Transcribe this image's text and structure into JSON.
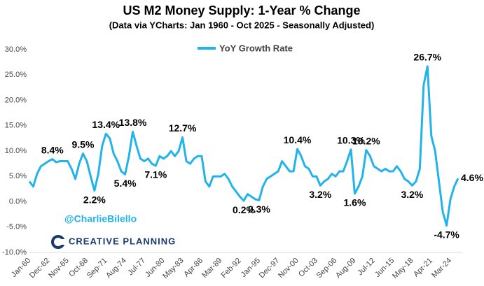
{
  "chart_data": {
    "type": "line",
    "title": "US M2 Money Supply: 1-Year % Change",
    "subtitle": "(Data via YCharts: Jan 1960 - Oct 2025 - Seasonally Adjusted)",
    "watermark": "@CharlieBilello",
    "brand": "CREATIVE PLANNING",
    "categories": [
      "Jan-60",
      null,
      null,
      null,
      null,
      "Dec-62",
      null,
      null,
      null,
      null,
      "Nov-65",
      null,
      null,
      null,
      null,
      "Oct-68",
      null,
      null,
      null,
      null,
      "Sep-71",
      null,
      null,
      null,
      null,
      "Aug-74",
      null,
      null,
      null,
      null,
      "Jul-77",
      null,
      null,
      null,
      null,
      "Jun-80",
      null,
      null,
      null,
      null,
      "May-83",
      null,
      null,
      null,
      null,
      "Apr-86",
      null,
      null,
      null,
      null,
      "Mar-89",
      null,
      null,
      null,
      null,
      "Feb-92",
      null,
      null,
      null,
      null,
      "Jan-95",
      null,
      null,
      null,
      null,
      "Dec-97",
      null,
      null,
      null,
      null,
      "Nov-00",
      null,
      null,
      null,
      null,
      "Oct-03",
      null,
      null,
      null,
      null,
      "Sep-06",
      null,
      null,
      null,
      null,
      "Aug-09",
      null,
      null,
      null,
      null,
      "Jul-12",
      null,
      null,
      null,
      null,
      "Jun-15",
      null,
      null,
      null,
      null,
      "May-18",
      null,
      null,
      null,
      null,
      "Apr-21",
      null,
      null,
      null,
      null,
      "Mar-24",
      null,
      null
    ],
    "series": [
      {
        "name": "YoY Growth Rate",
        "color": "#22b3ea",
        "values": [
          4,
          3,
          5.5,
          7,
          7.5,
          8,
          8.4,
          7.8,
          8,
          8,
          8,
          6.5,
          4.5,
          7.5,
          9.5,
          8,
          5,
          2.2,
          5.5,
          11,
          13.4,
          12.5,
          9.5,
          8,
          6,
          5.4,
          9,
          13.8,
          11,
          8.5,
          8,
          8.5,
          7.5,
          7.1,
          9,
          8.5,
          9,
          10,
          9,
          10,
          12.7,
          8,
          7.5,
          8.5,
          9,
          9,
          4,
          3,
          5,
          5,
          5,
          5.5,
          4.5,
          3,
          2,
          1,
          0.2,
          1.5,
          1,
          0.5,
          0.3,
          3,
          4.5,
          5,
          5.5,
          6,
          8,
          7,
          6,
          6,
          10.4,
          9,
          7,
          6.5,
          5,
          5,
          3.2,
          4,
          4.5,
          5.5,
          5,
          6,
          6,
          8,
          10.3,
          1.6,
          3,
          5,
          10.2,
          9,
          7,
          6.5,
          6,
          6.5,
          6,
          6,
          7,
          6,
          4.5,
          4,
          3.2,
          4,
          6.5,
          23,
          26.7,
          13,
          10,
          4,
          -2,
          -4.7,
          0.5,
          3,
          4.6
        ],
        "value_labels": [
          null,
          null,
          null,
          null,
          null,
          null,
          "8.4%",
          null,
          null,
          null,
          null,
          null,
          null,
          null,
          "9.5%",
          null,
          null,
          "2.2%",
          null,
          null,
          "13.4%",
          null,
          null,
          null,
          null,
          "5.4%",
          null,
          "13.8%",
          null,
          null,
          null,
          null,
          null,
          "7.1%",
          null,
          null,
          null,
          null,
          null,
          null,
          "12.7%",
          null,
          null,
          null,
          null,
          null,
          null,
          null,
          null,
          null,
          null,
          null,
          null,
          null,
          null,
          null,
          "0.2%",
          null,
          null,
          null,
          "0.3%",
          null,
          null,
          null,
          null,
          null,
          null,
          null,
          null,
          null,
          "10.4%",
          null,
          null,
          null,
          null,
          null,
          "3.2%",
          null,
          null,
          null,
          null,
          null,
          null,
          null,
          "10.3%",
          "1.6%",
          null,
          null,
          "10.2%",
          null,
          null,
          null,
          null,
          null,
          null,
          null,
          null,
          null,
          null,
          null,
          "3.2%",
          null,
          null,
          null,
          "26.7%",
          null,
          null,
          null,
          null,
          "-4.7%",
          null,
          null,
          "4.6%"
        ]
      }
    ],
    "ylim": [
      -10,
      30
    ],
    "yticks": [
      {
        "value": -10,
        "label": "-10.0%"
      },
      {
        "value": -5,
        "label": "-5.0%"
      },
      {
        "value": 0,
        "label": "0.0%"
      },
      {
        "value": 5,
        "label": "5.0%"
      },
      {
        "value": 10,
        "label": "10.0%"
      },
      {
        "value": 15,
        "label": "15.0%"
      },
      {
        "value": 20,
        "label": "20.0%"
      },
      {
        "value": 25,
        "label": "25.0%"
      },
      {
        "value": 30,
        "label": "30.0%"
      }
    ],
    "grid": false,
    "legend": "top"
  }
}
